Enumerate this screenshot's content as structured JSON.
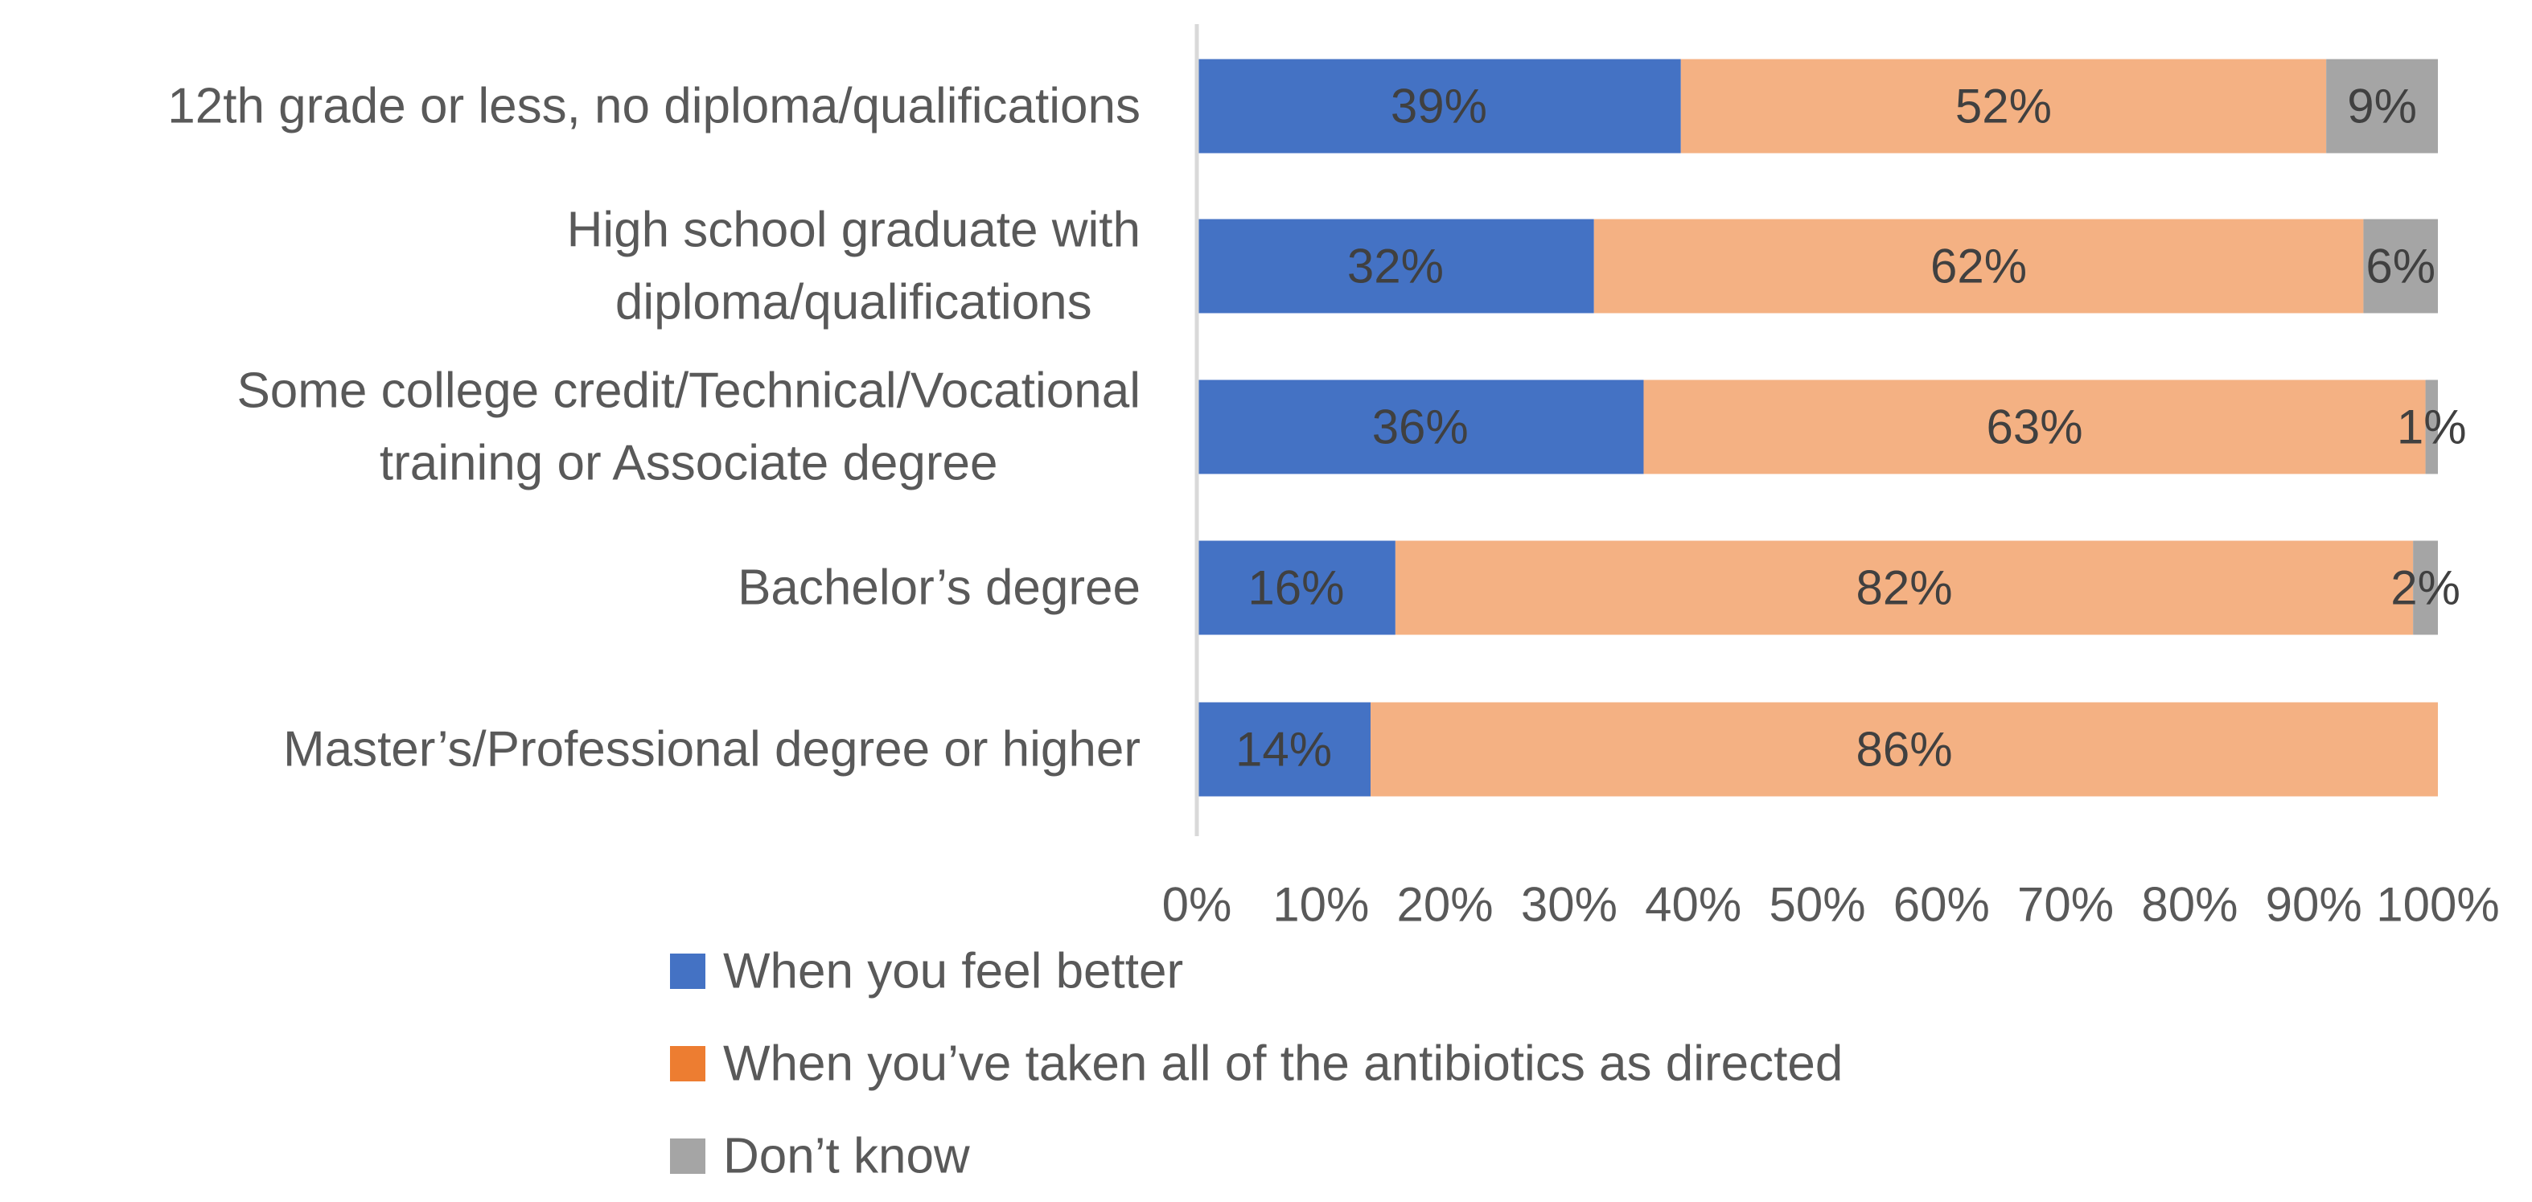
{
  "chart_data": {
    "type": "bar",
    "orientation": "horizontal",
    "stacked": true,
    "title": "",
    "xlabel": "",
    "ylabel": "",
    "xlim": [
      0,
      100
    ],
    "grid": false,
    "legend_position": "bottom",
    "categories": [
      [
        "12th grade or less, no diploma/qualifications"
      ],
      [
        "High school graduate with",
        "diploma/qualifications"
      ],
      [
        "Some college credit/Technical/Vocational",
        "training or Associate degree"
      ],
      [
        "Bachelor’s degree"
      ],
      [
        "Master’s/Professional degree or higher"
      ]
    ],
    "x_ticks": [
      "0%",
      "10%",
      "20%",
      "30%",
      "40%",
      "50%",
      "60%",
      "70%",
      "80%",
      "90%",
      "100%"
    ],
    "series": [
      {
        "name": "When you feel better",
        "color": "#4472C4",
        "legend_color": "#4472C4",
        "values": [
          39,
          32,
          36,
          16,
          14
        ],
        "labels": [
          "39%",
          "32%",
          "36%",
          "16%",
          "14%"
        ]
      },
      {
        "name": "When you’ve taken all of the antibiotics as directed",
        "color": "#F4B183",
        "legend_color": "#ED7D31",
        "values": [
          52,
          62,
          63,
          82,
          86
        ],
        "labels": [
          "52%",
          "62%",
          "63%",
          "82%",
          "86%"
        ]
      },
      {
        "name": "Don’t know",
        "color": "#A5A5A5",
        "legend_color": "#A5A5A5",
        "values": [
          9,
          6,
          1,
          2,
          0
        ],
        "labels": [
          "9%",
          "6%",
          "1%",
          "2%",
          ""
        ]
      }
    ]
  }
}
